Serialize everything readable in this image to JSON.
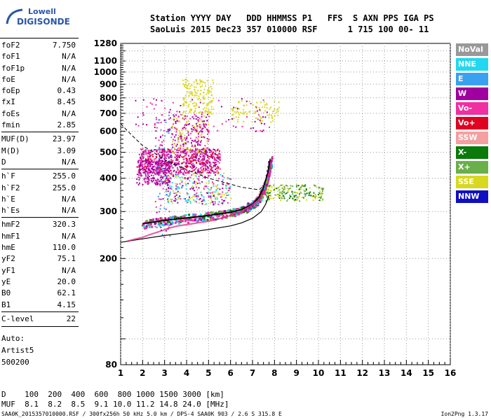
{
  "logo": {
    "line1": "Lowell",
    "line2": "DIGISONDE"
  },
  "header": {
    "row1": "Station YYYY DAY   DDD HHMMSS P1   FFS  S AXN PPS IGA PS",
    "row2": "SaoLuis 2015 Dec23 357 010000 RSF      1 715 100 00- 11"
  },
  "params": [
    {
      "name": "foF2",
      "value": "7.750"
    },
    {
      "name": "foF1",
      "value": "N/A"
    },
    {
      "name": "foF1p",
      "value": "N/A"
    },
    {
      "name": "foE",
      "value": "N/A"
    },
    {
      "name": "foEp",
      "value": "0.43"
    },
    {
      "name": "fxI",
      "value": "8.45"
    },
    {
      "name": "foEs",
      "value": "N/A"
    },
    {
      "name": "fmin",
      "value": "2.85"
    },
    {
      "name": "MUF(D)",
      "value": "23.97"
    },
    {
      "name": "M(D)",
      "value": "3.09"
    },
    {
      "name": "D",
      "value": "N/A"
    },
    {
      "name": "h`F",
      "value": "255.0"
    },
    {
      "name": "h`F2",
      "value": "255.0"
    },
    {
      "name": "h`E",
      "value": "N/A"
    },
    {
      "name": "h`Es",
      "value": "N/A"
    },
    {
      "name": "hmF2",
      "value": "320.3"
    },
    {
      "name": "hmF1",
      "value": "N/A"
    },
    {
      "name": "hmE",
      "value": "110.0"
    },
    {
      "name": "yF2",
      "value": "75.1"
    },
    {
      "name": "yF1",
      "value": "N/A"
    },
    {
      "name": "yE",
      "value": "20.0"
    },
    {
      "name": "B0",
      "value": "62.1"
    },
    {
      "name": "B1",
      "value": "4.15"
    },
    {
      "name": "C-level",
      "value": "22"
    }
  ],
  "auto": {
    "label": "Auto:",
    "artist": "Artist5",
    "version": "500200"
  },
  "legend": [
    {
      "label": "NoVal",
      "color": "#999999"
    },
    {
      "label": "NNE",
      "color": "#22d8f0"
    },
    {
      "label": "E",
      "color": "#3aa0f0"
    },
    {
      "label": "W",
      "color": "#a000a0"
    },
    {
      "label": "Vo-",
      "color": "#f030a0"
    },
    {
      "label": "Vo+",
      "color": "#e00020"
    },
    {
      "label": "SSW",
      "color": "#f4a0a0"
    },
    {
      "label": "X-",
      "color": "#0a7a0a"
    },
    {
      "label": "X+",
      "color": "#6ab04a"
    },
    {
      "label": "SSE",
      "color": "#d8d820"
    },
    {
      "label": "NNW",
      "color": "#1010c0"
    }
  ],
  "muf_table": {
    "row1": "D    100  200  400  600  800 1000 1500 3000 [km]",
    "row2": "MUF  8.1  8.2  8.5  9.1 10.0 11.2 14.8 24.0 [MHz]"
  },
  "footer": "SAA0K_2015357010000.RSF / 300fx256h 50 kHz 5.0 km / DPS-4 SAA0K 903 / 2.6 S 315.8 E",
  "footer_right": "Ion2Png 1.3.17",
  "chart_data": {
    "type": "scatter",
    "title": "",
    "xlabel": "",
    "ylabel": "",
    "xlim": [
      1,
      16
    ],
    "ylim": [
      80,
      1280
    ],
    "yscale": "log",
    "x_ticks": [
      "1",
      "2",
      "3",
      "4",
      "5",
      "6",
      "7",
      "8",
      "9",
      "10",
      "11",
      "12",
      "13",
      "14",
      "15",
      "16"
    ],
    "y_ticks": [
      "80",
      "200",
      "300",
      "400",
      "500",
      "600",
      "700",
      "800",
      "900",
      "1000",
      "1100",
      "1280"
    ],
    "grid": true,
    "trace_points": [
      [
        1.3,
        232
      ],
      [
        1.6,
        236
      ],
      [
        2.0,
        240
      ],
      [
        2.4,
        247
      ],
      [
        2.8,
        253
      ],
      [
        3.2,
        260
      ],
      [
        3.6,
        265
      ],
      [
        4.0,
        268
      ],
      [
        4.5,
        272
      ],
      [
        5.0,
        276
      ],
      [
        5.5,
        282
      ],
      [
        6.0,
        290
      ],
      [
        6.5,
        300
      ],
      [
        7.0,
        318
      ],
      [
        7.3,
        332
      ],
      [
        7.5,
        350
      ],
      [
        7.7,
        380
      ],
      [
        7.8,
        420
      ],
      [
        7.85,
        470
      ]
    ],
    "profile_curve": [
      [
        1.0,
        230
      ],
      [
        2.0,
        237
      ],
      [
        3.0,
        244
      ],
      [
        4.0,
        250
      ],
      [
        5.0,
        257
      ],
      [
        6.0,
        265
      ],
      [
        6.5,
        272
      ],
      [
        7.0,
        283
      ],
      [
        7.4,
        300
      ],
      [
        7.6,
        320
      ],
      [
        7.75,
        345
      ]
    ],
    "dashed_curve": [
      [
        1.0,
        640
      ],
      [
        1.5,
        580
      ],
      [
        2.0,
        530
      ],
      [
        3.0,
        470
      ],
      [
        4.0,
        430
      ],
      [
        5.0,
        400
      ],
      [
        6.0,
        380
      ],
      [
        6.5,
        370
      ],
      [
        7.0,
        365
      ],
      [
        7.3,
        362
      ],
      [
        7.5,
        375
      ]
    ],
    "fitted_trace": [
      [
        2.0,
        270
      ],
      [
        3.0,
        278
      ],
      [
        4.0,
        284
      ],
      [
        5.0,
        290
      ],
      [
        6.0,
        298
      ],
      [
        6.5,
        305
      ],
      [
        7.0,
        320
      ],
      [
        7.3,
        340
      ],
      [
        7.5,
        370
      ],
      [
        7.7,
        420
      ],
      [
        7.8,
        470
      ]
    ]
  }
}
